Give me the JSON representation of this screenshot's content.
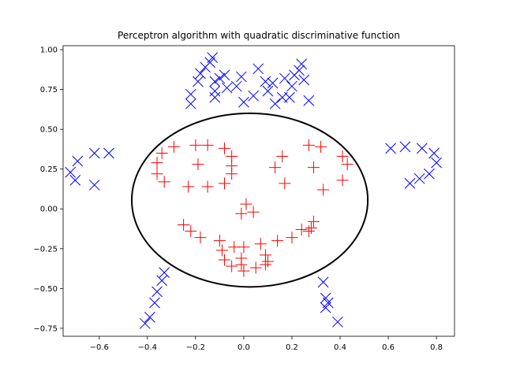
{
  "chart_data": {
    "type": "scatter",
    "title": "Perceptron algorithm with quadratic discriminative function",
    "xlabel": "",
    "ylabel": "",
    "xlim": [
      -0.75,
      0.875
    ],
    "ylim": [
      -0.8,
      1.025
    ],
    "x_ticks": [
      "−0.6",
      "−0.4",
      "−0.2",
      "0.0",
      "0.2",
      "0.4",
      "0.6",
      "0.8"
    ],
    "x_tick_values": [
      -0.6,
      -0.4,
      -0.2,
      0.0,
      0.2,
      0.4,
      0.6,
      0.8
    ],
    "y_ticks": [
      "−0.75",
      "−0.50",
      "−0.25",
      "0.00",
      "0.25",
      "0.50",
      "0.75",
      "1.00"
    ],
    "y_tick_values": [
      -0.75,
      -0.5,
      -0.25,
      0.0,
      0.25,
      0.5,
      0.75,
      1.0
    ],
    "grid": false,
    "legend": "none",
    "series": [
      {
        "marker": "x",
        "color": "#0000ff",
        "points": [
          [
            -0.72,
            0.23
          ],
          [
            -0.7,
            0.18
          ],
          [
            -0.69,
            0.3
          ],
          [
            -0.62,
            0.35
          ],
          [
            -0.62,
            0.15
          ],
          [
            -0.56,
            0.35
          ],
          [
            -0.22,
            0.66
          ],
          [
            -0.22,
            0.72
          ],
          [
            -0.19,
            0.8
          ],
          [
            -0.18,
            0.85
          ],
          [
            -0.16,
            0.89
          ],
          [
            -0.14,
            0.92
          ],
          [
            -0.13,
            0.95
          ],
          [
            -0.12,
            0.74
          ],
          [
            -0.12,
            0.8
          ],
          [
            -0.12,
            0.7
          ],
          [
            -0.1,
            0.82
          ],
          [
            -0.08,
            0.84
          ],
          [
            -0.07,
            0.76
          ],
          [
            -0.03,
            0.77
          ],
          [
            -0.01,
            0.83
          ],
          [
            0.0,
            0.67
          ],
          [
            0.04,
            0.71
          ],
          [
            0.06,
            0.88
          ],
          [
            0.09,
            0.8
          ],
          [
            0.1,
            0.74
          ],
          [
            0.12,
            0.79
          ],
          [
            0.13,
            0.66
          ],
          [
            0.16,
            0.7
          ],
          [
            0.17,
            0.82
          ],
          [
            0.19,
            0.7
          ],
          [
            0.2,
            0.77
          ],
          [
            0.21,
            0.84
          ],
          [
            0.23,
            0.87
          ],
          [
            0.24,
            0.91
          ],
          [
            0.25,
            0.81
          ],
          [
            0.27,
            0.68
          ],
          [
            0.61,
            0.38
          ],
          [
            0.67,
            0.39
          ],
          [
            0.69,
            0.16
          ],
          [
            0.73,
            0.19
          ],
          [
            0.74,
            0.38
          ],
          [
            0.77,
            0.22
          ],
          [
            0.79,
            0.35
          ],
          [
            0.8,
            0.29
          ],
          [
            -0.41,
            -0.72
          ],
          [
            -0.39,
            -0.68
          ],
          [
            -0.37,
            -0.59
          ],
          [
            -0.36,
            -0.52
          ],
          [
            -0.34,
            -0.45
          ],
          [
            -0.33,
            -0.4
          ],
          [
            0.33,
            -0.46
          ],
          [
            0.34,
            -0.56
          ],
          [
            0.34,
            -0.62
          ],
          [
            0.35,
            -0.59
          ],
          [
            0.39,
            -0.71
          ]
        ]
      },
      {
        "marker": "+",
        "color": "#ff0000",
        "points": [
          [
            -0.36,
            0.29
          ],
          [
            -0.36,
            0.22
          ],
          [
            -0.34,
            0.35
          ],
          [
            -0.33,
            0.17
          ],
          [
            -0.29,
            0.39
          ],
          [
            -0.23,
            0.14
          ],
          [
            -0.2,
            0.4
          ],
          [
            -0.19,
            0.28
          ],
          [
            -0.15,
            0.4
          ],
          [
            -0.15,
            0.14
          ],
          [
            -0.08,
            0.38
          ],
          [
            -0.08,
            0.16
          ],
          [
            -0.05,
            0.22
          ],
          [
            -0.05,
            0.27
          ],
          [
            -0.05,
            0.33
          ],
          [
            0.01,
            0.03
          ],
          [
            -0.01,
            -0.03
          ],
          [
            0.04,
            -0.02
          ],
          [
            0.13,
            0.26
          ],
          [
            0.16,
            0.33
          ],
          [
            0.17,
            0.16
          ],
          [
            0.27,
            0.4
          ],
          [
            0.29,
            0.26
          ],
          [
            0.32,
            0.39
          ],
          [
            0.33,
            0.12
          ],
          [
            0.41,
            0.33
          ],
          [
            0.41,
            0.18
          ],
          [
            0.43,
            0.28
          ],
          [
            -0.25,
            -0.1
          ],
          [
            -0.22,
            -0.14
          ],
          [
            -0.18,
            -0.18
          ],
          [
            -0.1,
            -0.2
          ],
          [
            -0.09,
            -0.26
          ],
          [
            -0.08,
            -0.32
          ],
          [
            -0.05,
            -0.36
          ],
          [
            -0.04,
            -0.24
          ],
          [
            -0.01,
            -0.31
          ],
          [
            -0.01,
            -0.35
          ],
          [
            0.0,
            -0.39
          ],
          [
            0.0,
            -0.24
          ],
          [
            0.05,
            -0.37
          ],
          [
            0.07,
            -0.22
          ],
          [
            0.09,
            -0.29
          ],
          [
            0.09,
            -0.35
          ],
          [
            0.1,
            -0.33
          ],
          [
            0.14,
            -0.2
          ],
          [
            0.2,
            -0.18
          ],
          [
            0.24,
            -0.13
          ],
          [
            0.27,
            -0.14
          ],
          [
            0.28,
            -0.12
          ],
          [
            0.29,
            -0.08
          ]
        ]
      }
    ],
    "decision_boundary": {
      "shape": "ellipse",
      "color": "#000000",
      "center": [
        0.025,
        0.055
      ],
      "radius_x": 0.49,
      "radius_y": 0.545
    }
  }
}
